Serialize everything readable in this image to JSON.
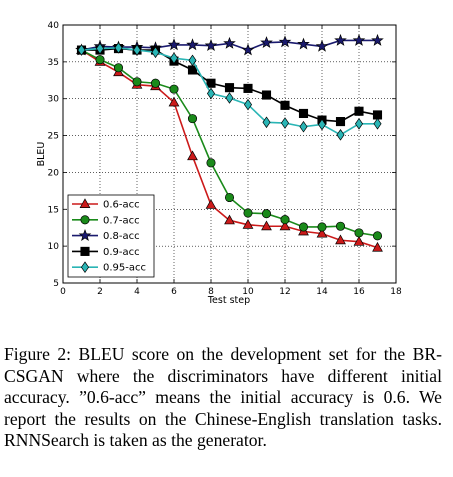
{
  "chart_data": {
    "type": "line",
    "xlabel": "Test step",
    "ylabel": "BLEU",
    "xlim": [
      0,
      18
    ],
    "ylim": [
      5,
      40
    ],
    "xticks": [
      0,
      2,
      4,
      6,
      8,
      10,
      12,
      14,
      16,
      18
    ],
    "yticks": [
      5,
      10,
      15,
      20,
      25,
      30,
      35,
      40
    ],
    "grid": true,
    "legend_position": "lower-left",
    "x": [
      1,
      2,
      3,
      4,
      5,
      6,
      7,
      8,
      9,
      10,
      11,
      12,
      13,
      14,
      15,
      16,
      17
    ],
    "series": [
      {
        "name": "0.6-acc",
        "color": "#cc1a1a",
        "marker": "triangle",
        "values": [
          36.6,
          35.0,
          33.6,
          31.9,
          31.7,
          29.5,
          22.2,
          15.6,
          13.5,
          12.9,
          12.7,
          12.7,
          12.0,
          11.7,
          10.8,
          10.6,
          9.8
        ]
      },
      {
        "name": "0.7-acc",
        "color": "#1a8a1a",
        "marker": "circle",
        "values": [
          36.6,
          35.3,
          34.2,
          32.3,
          32.1,
          31.3,
          27.3,
          21.3,
          16.6,
          14.5,
          14.4,
          13.6,
          12.6,
          12.6,
          12.7,
          11.8,
          11.4
        ]
      },
      {
        "name": "0.8-acc",
        "color": "#1a1a6e",
        "marker": "star",
        "values": [
          36.6,
          37.1,
          37.0,
          37.0,
          36.9,
          37.3,
          37.3,
          37.2,
          37.5,
          36.6,
          37.6,
          37.7,
          37.4,
          37.1,
          37.9,
          37.9,
          37.9
        ]
      },
      {
        "name": "0.9-acc",
        "color": "#000000",
        "marker": "square",
        "values": [
          36.6,
          36.6,
          36.8,
          36.6,
          36.6,
          35.1,
          33.9,
          32.1,
          31.5,
          31.4,
          30.5,
          29.1,
          28.0,
          27.1,
          26.9,
          28.3,
          27.8
        ]
      },
      {
        "name": "0.95-acc",
        "color": "#2ab5b5",
        "marker": "diamond",
        "values": [
          36.6,
          36.8,
          36.9,
          36.6,
          36.3,
          35.5,
          35.2,
          30.7,
          30.1,
          29.2,
          26.8,
          26.7,
          26.2,
          26.5,
          25.1,
          26.6,
          26.6
        ]
      }
    ]
  },
  "caption": "Figure 2: BLEU score on the development set for the BR-CSGAN where the discriminators have different initial accuracy. ”0.6-acc” means the initial accuracy is 0.6. We report the results on the Chinese-English translation tasks. RNNSearch is taken as the generator."
}
